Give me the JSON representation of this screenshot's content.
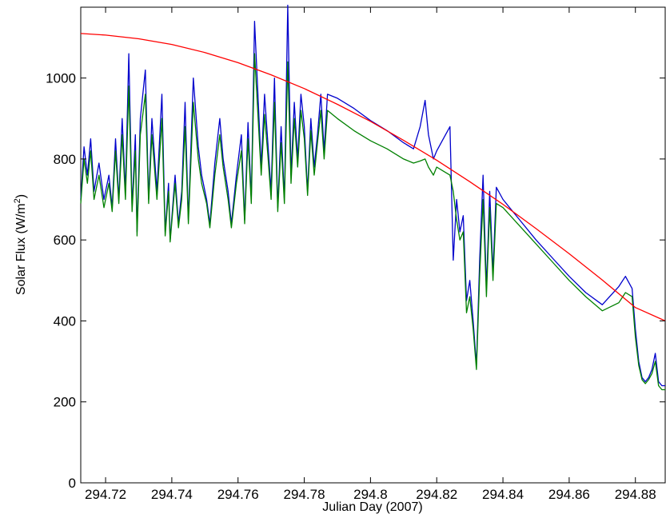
{
  "chart_data": {
    "type": "line",
    "title": "",
    "xlabel": "Julian Day (2007)",
    "ylabel": {
      "prefix": "Solar Flux (W/m",
      "sup": "2",
      "suffix": ")"
    },
    "xlim": [
      294.7125,
      294.889
    ],
    "ylim": [
      0,
      1175
    ],
    "xticks": [
      294.72,
      294.74,
      294.76,
      294.78,
      294.8,
      294.82,
      294.84,
      294.86,
      294.88
    ],
    "xtick_labels": [
      "294.72",
      "294.74",
      "294.76",
      "294.78",
      "294.8",
      "294.82",
      "294.84",
      "294.86",
      "294.88"
    ],
    "yticks": [
      0,
      200,
      400,
      600,
      800,
      1000
    ],
    "ytick_labels": [
      "0",
      "200",
      "400",
      "600",
      "800",
      "1000"
    ],
    "grid": false,
    "legend": "none",
    "series": [
      {
        "color": "#ff0000",
        "x": [
          294.7125,
          294.72,
          294.73,
          294.74,
          294.75,
          294.76,
          294.77,
          294.78,
          294.79,
          294.8,
          294.81,
          294.82,
          294.83,
          294.84,
          294.85,
          294.86,
          294.87,
          294.88,
          294.889
        ],
        "values": [
          1110,
          1106,
          1097,
          1083,
          1063,
          1038,
          1008,
          974,
          935,
          893,
          846,
          797,
          744,
          688,
          628,
          566,
          501,
          433,
          400
        ]
      },
      {
        "color": "#0000cc",
        "x": [
          294.7125,
          294.7135,
          294.7145,
          294.7155,
          294.7165,
          294.718,
          294.7195,
          294.721,
          294.722,
          294.723,
          294.724,
          294.725,
          294.726,
          294.727,
          294.728,
          294.729,
          294.7295,
          294.7305,
          294.732,
          294.733,
          294.734,
          294.7355,
          294.737,
          294.738,
          294.739,
          294.7395,
          294.741,
          294.742,
          294.743,
          294.744,
          294.745,
          294.7465,
          294.748,
          294.749,
          294.7505,
          294.7515,
          294.753,
          294.7545,
          294.7555,
          294.757,
          294.758,
          294.7595,
          294.761,
          294.762,
          294.763,
          294.764,
          294.765,
          294.766,
          294.767,
          294.768,
          294.769,
          294.77,
          294.771,
          294.772,
          294.773,
          294.774,
          294.775,
          294.776,
          294.777,
          294.778,
          294.779,
          294.78,
          294.781,
          294.782,
          294.783,
          294.784,
          294.785,
          294.786,
          294.787,
          294.79,
          294.795,
          294.8,
          294.805,
          294.81,
          294.813,
          294.815,
          294.8165,
          294.8175,
          294.819,
          294.82,
          294.822,
          294.824,
          294.825,
          294.826,
          294.827,
          294.828,
          294.829,
          294.83,
          294.831,
          294.832,
          294.833,
          294.834,
          294.835,
          294.836,
          294.837,
          294.838,
          294.84,
          294.845,
          294.85,
          294.855,
          294.86,
          294.865,
          294.87,
          294.875,
          294.877,
          294.879,
          294.88,
          294.881,
          294.882,
          294.883,
          294.884,
          294.885,
          294.886,
          294.887,
          294.888,
          294.889
        ],
        "values": [
          700,
          830,
          760,
          850,
          720,
          790,
          700,
          760,
          680,
          850,
          700,
          900,
          720,
          1060,
          680,
          860,
          620,
          900,
          1020,
          700,
          900,
          720,
          960,
          620,
          740,
          600,
          760,
          640,
          720,
          940,
          650,
          1000,
          830,
          760,
          700,
          640,
          790,
          900,
          800,
          720,
          640,
          760,
          860,
          650,
          890,
          700,
          1140,
          960,
          780,
          960,
          840,
          720,
          1000,
          680,
          880,
          700,
          1180,
          760,
          940,
          800,
          960,
          880,
          720,
          900,
          780,
          860,
          960,
          820,
          960,
          950,
          925,
          895,
          870,
          840,
          825,
          880,
          945,
          860,
          800,
          820,
          850,
          880,
          550,
          700,
          620,
          660,
          450,
          500,
          400,
          290,
          560,
          760,
          480,
          720,
          520,
          730,
          700,
          650,
          600,
          555,
          510,
          470,
          440,
          485,
          510,
          480,
          380,
          300,
          260,
          250,
          260,
          280,
          320,
          250,
          240,
          240
        ]
      },
      {
        "color": "#008000",
        "x": [
          294.7125,
          294.7135,
          294.7145,
          294.7155,
          294.7165,
          294.718,
          294.7195,
          294.721,
          294.722,
          294.723,
          294.724,
          294.725,
          294.726,
          294.727,
          294.728,
          294.729,
          294.7295,
          294.7305,
          294.732,
          294.733,
          294.734,
          294.7355,
          294.737,
          294.738,
          294.739,
          294.7395,
          294.741,
          294.742,
          294.743,
          294.744,
          294.745,
          294.7465,
          294.748,
          294.749,
          294.7505,
          294.7515,
          294.753,
          294.7545,
          294.7555,
          294.757,
          294.758,
          294.7595,
          294.761,
          294.762,
          294.763,
          294.764,
          294.765,
          294.766,
          294.767,
          294.768,
          294.769,
          294.77,
          294.771,
          294.772,
          294.773,
          294.774,
          294.775,
          294.776,
          294.777,
          294.778,
          294.779,
          294.78,
          294.781,
          294.782,
          294.783,
          294.784,
          294.785,
          294.786,
          294.787,
          294.79,
          294.795,
          294.8,
          294.805,
          294.81,
          294.813,
          294.815,
          294.8165,
          294.8175,
          294.819,
          294.82,
          294.822,
          294.824,
          294.825,
          294.826,
          294.827,
          294.828,
          294.829,
          294.83,
          294.831,
          294.832,
          294.833,
          294.834,
          294.835,
          294.836,
          294.837,
          294.838,
          294.84,
          294.845,
          294.85,
          294.855,
          294.86,
          294.865,
          294.87,
          294.875,
          294.877,
          294.879,
          294.88,
          294.881,
          294.882,
          294.883,
          294.884,
          294.885,
          294.886,
          294.887,
          294.888,
          294.889
        ],
        "values": [
          690,
          800,
          740,
          820,
          700,
          760,
          680,
          740,
          670,
          820,
          690,
          860,
          700,
          980,
          670,
          820,
          610,
          860,
          960,
          690,
          860,
          700,
          900,
          610,
          720,
          595,
          740,
          630,
          700,
          880,
          640,
          940,
          800,
          740,
          690,
          630,
          760,
          860,
          780,
          700,
          630,
          740,
          820,
          640,
          850,
          690,
          1060,
          910,
          760,
          910,
          810,
          700,
          940,
          670,
          840,
          690,
          1040,
          740,
          900,
          780,
          920,
          850,
          710,
          870,
          760,
          840,
          920,
          800,
          920,
          900,
          870,
          845,
          825,
          800,
          790,
          795,
          800,
          780,
          760,
          780,
          770,
          760,
          720,
          650,
          600,
          620,
          420,
          460,
          380,
          280,
          520,
          700,
          460,
          680,
          500,
          690,
          680,
          635,
          590,
          545,
          500,
          460,
          425,
          445,
          470,
          460,
          360,
          290,
          255,
          245,
          255,
          270,
          300,
          240,
          230,
          230
        ]
      }
    ]
  }
}
